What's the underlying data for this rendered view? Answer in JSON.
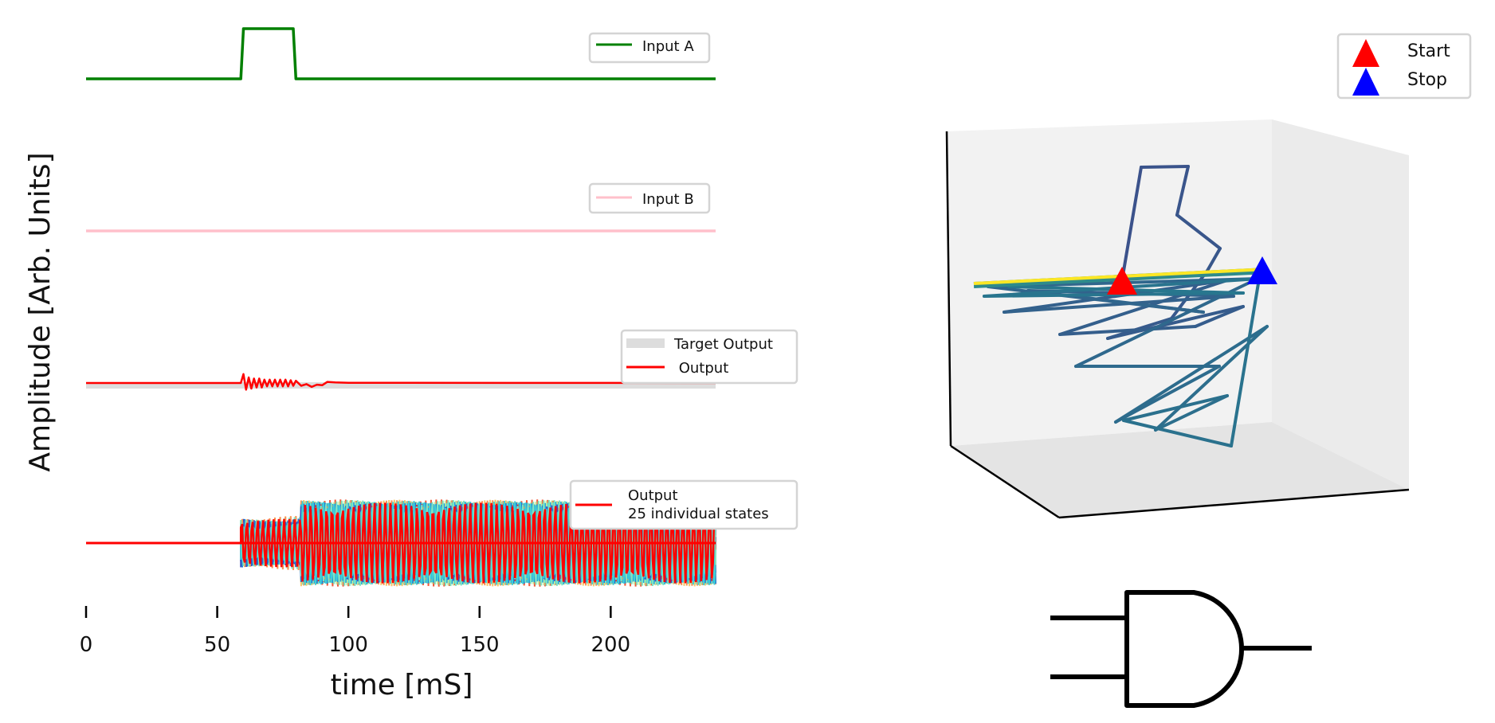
{
  "chart_data": [
    {
      "type": "line",
      "xlabel": "time [mS]",
      "ylabel": "Amplitude [Arb. Units]",
      "xlim": [
        0,
        240
      ],
      "xticks": [
        0,
        50,
        100,
        150,
        200
      ],
      "grid": false,
      "panels": [
        {
          "legend_position": "top-right",
          "series": [
            {
              "name": "Input A",
              "color": "#008000",
              "x": [
                0,
                59,
                60,
                79,
                80,
                240
              ],
              "y": [
                0,
                0,
                1,
                1,
                0,
                0
              ]
            }
          ]
        },
        {
          "legend_position": "top-right",
          "series": [
            {
              "name": "Input B",
              "color": "#ffc0cb",
              "x": [
                0,
                240
              ],
              "y": [
                0,
                0
              ]
            }
          ]
        },
        {
          "legend_position": "top-right",
          "series": [
            {
              "name": "Target Output",
              "color": "#dddddd",
              "x": [
                0,
                240
              ],
              "y": [
                0,
                0
              ]
            },
            {
              "name": " Output",
              "color": "#ff0000",
              "x": [
                0,
                59,
                60,
                61,
                62,
                63,
                64,
                65,
                66,
                67,
                68,
                69,
                70,
                71,
                72,
                73,
                74,
                75,
                76,
                77,
                78,
                79,
                80,
                82,
                84,
                86,
                88,
                90,
                92,
                95,
                100,
                240
              ],
              "y": [
                0,
                0,
                0.8,
                -0.6,
                0.5,
                -0.5,
                0.4,
                -0.4,
                0.4,
                -0.4,
                0.3,
                -0.3,
                0.3,
                -0.3,
                0.3,
                -0.3,
                0.3,
                -0.3,
                0.3,
                -0.3,
                0.25,
                -0.25,
                0.2,
                -0.25,
                -0.1,
                -0.35,
                -0.15,
                -0.2,
                0.1,
                0.05,
                0.02,
                0
              ]
            }
          ]
        },
        {
          "legend_position": "top-right",
          "legend_label": "Output\n25 individual states",
          "state_count": 25,
          "output_color": "#ff0000",
          "oscillation_start": 59,
          "transient_end": 82,
          "steady_amplitude": 1.0,
          "transient_amplitude": 0.9
        }
      ]
    },
    {
      "type": "line3d",
      "legend_position": "top-right",
      "markers": [
        {
          "name": "Start",
          "color": "#ff0000",
          "shape": "triangle"
        },
        {
          "name": "Stop",
          "color": "#0000ff",
          "shape": "triangle"
        }
      ],
      "trajectory_color_start": "#3b528b",
      "trajectory_color_end": "#fde725"
    }
  ],
  "logic_gate": {
    "type": "AND",
    "icon": "and-gate-icon"
  }
}
